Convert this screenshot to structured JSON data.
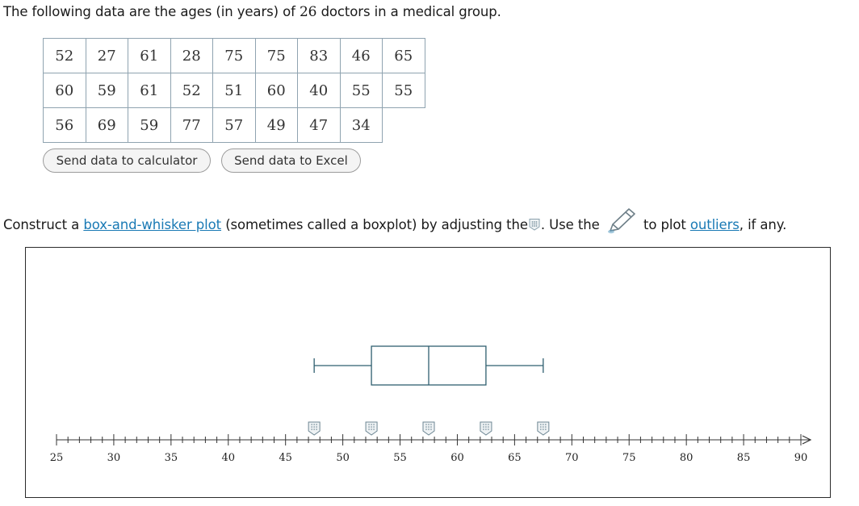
{
  "intro": {
    "prefix": "The following data are the ages (in years) of",
    "count": "26",
    "suffix": "doctors in a medical group."
  },
  "table": {
    "rows": [
      [
        "52",
        "27",
        "61",
        "28",
        "75",
        "75",
        "83",
        "46",
        "65"
      ],
      [
        "60",
        "59",
        "61",
        "52",
        "51",
        "60",
        "40",
        "55",
        "55"
      ],
      [
        "56",
        "69",
        "59",
        "77",
        "57",
        "49",
        "47",
        "34"
      ]
    ]
  },
  "buttons": {
    "calculator": "Send data to calculator",
    "excel": "Send data to Excel"
  },
  "instruction": {
    "part1": "Construct a",
    "link1": "box-and-whisker plot",
    "part2": "(sometimes called a boxplot) by adjusting the",
    "part3": ". Use the",
    "part4": "to plot",
    "link2": "outliers",
    "part5": ", if any."
  },
  "chart_data": {
    "type": "boxplot",
    "axis": {
      "min": 25,
      "max": 90,
      "major_step": 5,
      "minor_step": 1,
      "tick_labels": [
        "25",
        "30",
        "35",
        "40",
        "45",
        "50",
        "55",
        "60",
        "65",
        "70",
        "75",
        "80",
        "85",
        "90"
      ]
    },
    "box": {
      "min": 47.5,
      "q1": 52.5,
      "median": 57.5,
      "q3": 62.5,
      "max": 67.5
    },
    "handle_values": [
      47.5,
      52.5,
      57.5,
      62.5,
      67.5
    ],
    "colors": {
      "box": "#2f5f6f",
      "axis": "#333333",
      "handle": "#6d8693",
      "link": "#1a7ab5"
    }
  }
}
